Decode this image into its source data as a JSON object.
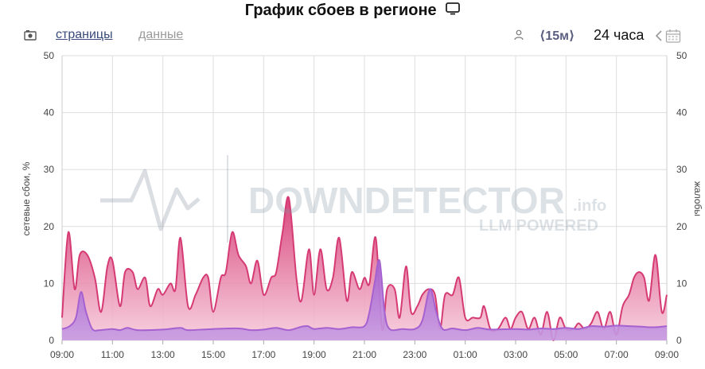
{
  "title": "График сбоев в регионе",
  "toolbar": {
    "pages_label": "страницы",
    "data_label": "данные",
    "interval_label": "⟨15м⟩",
    "range_label": "24 часа"
  },
  "watermark": {
    "brand": "DOWNDETECTOR",
    "suffix": ".info",
    "tagline": "LLM POWERED"
  },
  "icons": [
    "camera-icon",
    "monitor-icon",
    "user-icon",
    "chevron-left-icon",
    "calendar-icon"
  ],
  "colors": {
    "pink": "#d63a73",
    "purple": "#a661d0",
    "grid": "#dddddd"
  },
  "chart_data": {
    "type": "area",
    "ylabel": "сетевые сбои, %",
    "ylabel_right": "жалобы",
    "ylim": [
      0,
      50
    ],
    "yticks": [
      0,
      10,
      20,
      30,
      40,
      50
    ],
    "xlim": [
      0,
      24
    ],
    "x_ticks": [
      {
        "x": 0,
        "label": "09:00"
      },
      {
        "x": 2,
        "label": "11:00"
      },
      {
        "x": 4,
        "label": "13:00"
      },
      {
        "x": 6,
        "label": "15:00"
      },
      {
        "x": 8,
        "label": "17:00"
      },
      {
        "x": 10,
        "label": "19:00"
      },
      {
        "x": 12,
        "label": "21:00"
      },
      {
        "x": 14,
        "label": "23:00"
      },
      {
        "x": 16,
        "label": "01:00"
      },
      {
        "x": 18,
        "label": "03:00"
      },
      {
        "x": 20,
        "label": "05:00"
      },
      {
        "x": 22,
        "label": "07:00"
      },
      {
        "x": 24,
        "label": "09:00"
      }
    ],
    "grid": true,
    "series": [
      {
        "name": "",
        "color": "#d63a73",
        "points": [
          [
            0,
            4
          ],
          [
            0.25,
            19
          ],
          [
            0.5,
            9
          ],
          [
            0.7,
            15
          ],
          [
            1.0,
            15
          ],
          [
            1.3,
            11
          ],
          [
            1.55,
            5
          ],
          [
            1.8,
            13
          ],
          [
            2.0,
            14
          ],
          [
            2.3,
            6
          ],
          [
            2.5,
            12
          ],
          [
            2.8,
            12
          ],
          [
            3.0,
            9
          ],
          [
            3.3,
            11
          ],
          [
            3.5,
            6
          ],
          [
            3.8,
            9
          ],
          [
            4.0,
            8
          ],
          [
            4.3,
            10
          ],
          [
            4.5,
            9
          ],
          [
            4.7,
            18
          ],
          [
            5.0,
            6
          ],
          [
            5.3,
            8
          ],
          [
            5.6,
            11
          ],
          [
            5.8,
            11
          ],
          [
            6.0,
            5
          ],
          [
            6.3,
            11
          ],
          [
            6.5,
            12
          ],
          [
            6.75,
            19
          ],
          [
            7.0,
            15
          ],
          [
            7.3,
            13
          ],
          [
            7.5,
            10
          ],
          [
            7.75,
            14
          ],
          [
            8.0,
            8
          ],
          [
            8.3,
            11
          ],
          [
            8.5,
            12
          ],
          [
            8.75,
            19
          ],
          [
            9.0,
            25
          ],
          [
            9.3,
            11
          ],
          [
            9.5,
            7
          ],
          [
            9.8,
            16
          ],
          [
            10.0,
            8
          ],
          [
            10.25,
            16
          ],
          [
            10.5,
            9
          ],
          [
            10.75,
            11
          ],
          [
            11.0,
            18
          ],
          [
            11.3,
            7
          ],
          [
            11.5,
            12
          ],
          [
            11.8,
            9
          ],
          [
            12.0,
            11
          ],
          [
            12.2,
            10
          ],
          [
            12.45,
            18
          ],
          [
            12.7,
            2
          ],
          [
            12.9,
            9
          ],
          [
            13.2,
            9
          ],
          [
            13.4,
            4
          ],
          [
            13.65,
            13
          ],
          [
            13.85,
            5
          ],
          [
            14.1,
            6
          ],
          [
            14.3,
            8
          ],
          [
            14.55,
            9
          ],
          [
            14.8,
            8
          ],
          [
            15.0,
            2
          ],
          [
            15.2,
            8
          ],
          [
            15.5,
            8
          ],
          [
            15.75,
            11
          ],
          [
            16.0,
            4
          ],
          [
            16.3,
            4
          ],
          [
            16.6,
            4
          ],
          [
            16.75,
            6
          ],
          [
            17.0,
            2
          ],
          [
            17.3,
            2
          ],
          [
            17.6,
            4
          ],
          [
            17.8,
            2
          ],
          [
            18.0,
            4
          ],
          [
            18.25,
            5
          ],
          [
            18.5,
            2
          ],
          [
            18.75,
            4
          ],
          [
            19.0,
            1
          ],
          [
            19.25,
            5
          ],
          [
            19.5,
            0
          ],
          [
            19.75,
            4
          ],
          [
            20.0,
            2
          ],
          [
            20.3,
            2
          ],
          [
            20.5,
            3
          ],
          [
            20.75,
            2
          ],
          [
            21.0,
            3
          ],
          [
            21.25,
            5
          ],
          [
            21.5,
            2
          ],
          [
            21.75,
            5
          ],
          [
            22.0,
            1
          ],
          [
            22.25,
            6
          ],
          [
            22.5,
            8
          ],
          [
            22.7,
            11
          ],
          [
            22.9,
            12
          ],
          [
            23.1,
            11
          ],
          [
            23.3,
            7
          ],
          [
            23.55,
            15
          ],
          [
            23.8,
            5
          ],
          [
            24,
            8
          ]
        ]
      },
      {
        "name": "",
        "color": "#a661d0",
        "points": [
          [
            0,
            2
          ],
          [
            0.3,
            2.5
          ],
          [
            0.55,
            4
          ],
          [
            0.75,
            8.5
          ],
          [
            0.95,
            5
          ],
          [
            1.2,
            2
          ],
          [
            1.5,
            1.8
          ],
          [
            2.0,
            2
          ],
          [
            2.3,
            1.8
          ],
          [
            2.6,
            2.2
          ],
          [
            3.0,
            1.8
          ],
          [
            4.0,
            1.9
          ],
          [
            4.7,
            2.2
          ],
          [
            5.0,
            1.8
          ],
          [
            6.0,
            2.0
          ],
          [
            7.0,
            2.1
          ],
          [
            7.5,
            1.8
          ],
          [
            8.0,
            1.9
          ],
          [
            8.5,
            2.2
          ],
          [
            9.0,
            1.8
          ],
          [
            9.5,
            2.4
          ],
          [
            9.75,
            2.5
          ],
          [
            10.0,
            2.0
          ],
          [
            10.5,
            2.2
          ],
          [
            11.0,
            2.0
          ],
          [
            11.5,
            2.3
          ],
          [
            12.0,
            2.5
          ],
          [
            12.2,
            5
          ],
          [
            12.4,
            10
          ],
          [
            12.6,
            14
          ],
          [
            12.8,
            5
          ],
          [
            13.0,
            2.0
          ],
          [
            13.5,
            2.0
          ],
          [
            14.0,
            2.0
          ],
          [
            14.3,
            3.5
          ],
          [
            14.6,
            9
          ],
          [
            14.85,
            5
          ],
          [
            15.1,
            2.0
          ],
          [
            15.5,
            2.1
          ],
          [
            16.0,
            1.8
          ],
          [
            16.5,
            2.2
          ],
          [
            17.0,
            1.9
          ],
          [
            18.0,
            2.0
          ],
          [
            18.5,
            1.9
          ],
          [
            19.0,
            2.1
          ],
          [
            19.5,
            2.0
          ],
          [
            20.0,
            2.2
          ],
          [
            20.5,
            2.0
          ],
          [
            21.0,
            2.5
          ],
          [
            21.5,
            2.4
          ],
          [
            22.0,
            2.6
          ],
          [
            22.5,
            2.5
          ],
          [
            23.0,
            2.4
          ],
          [
            23.5,
            2.3
          ],
          [
            24,
            2.5
          ]
        ]
      }
    ]
  }
}
